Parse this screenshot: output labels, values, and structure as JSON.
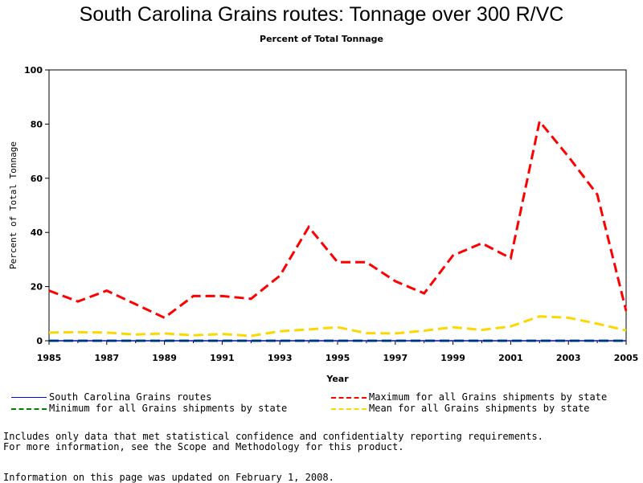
{
  "title": "South Carolina Grains routes: Tonnage over 300 R/VC",
  "subtitle": "Percent of Total Tonnage",
  "notes": {
    "line1": "Includes only data that met statistical confidence and confidentialty reporting requirements.",
    "line2": "For more information, see the Scope and Methodology for this product.",
    "updated": "Information on this page was updated on February 1, 2008."
  },
  "colors": {
    "south_carolina": "#0000ff",
    "maximum": "#ff0000",
    "minimum": "#008000",
    "mean": "#ffd700"
  },
  "chart_data": {
    "type": "line",
    "title": "South Carolina Grains routes: Tonnage over 300 R/VC",
    "subtitle": "Percent of Total Tonnage",
    "xlabel": "Year",
    "ylabel": "Percent of Total Tonnage",
    "xlim": [
      1985,
      2005
    ],
    "ylim": [
      0,
      100
    ],
    "x_ticks": [
      "1985",
      "1987",
      "1989",
      "1991",
      "1993",
      "1995",
      "1997",
      "1999",
      "2001",
      "2003",
      "2005"
    ],
    "y_ticks": [
      "0",
      "20",
      "40",
      "60",
      "80",
      "100"
    ],
    "grid": false,
    "legend_position": "bottom",
    "x": [
      1985,
      1986,
      1987,
      1988,
      1989,
      1990,
      1991,
      1992,
      1993,
      1994,
      1995,
      1996,
      1997,
      1998,
      1999,
      2000,
      2001,
      2002,
      2003,
      2004,
      2005
    ],
    "series": [
      {
        "name": "South Carolina Grains routes",
        "color": "#0000ff",
        "style": "solid",
        "values": [
          0,
          0,
          0,
          0,
          0,
          0,
          0,
          0,
          0,
          0,
          0,
          0,
          0,
          0,
          0,
          0,
          0,
          0,
          0,
          0,
          0
        ]
      },
      {
        "name": "Maximum for all Grains shipments by state",
        "color": "#ff0000",
        "style": "dashed",
        "values": [
          18.5,
          14.5,
          18.5,
          13.5,
          8.5,
          16.5,
          16.5,
          15.5,
          24,
          42,
          29,
          29,
          22,
          17.5,
          31.5,
          36,
          30.5,
          81,
          68,
          54,
          11
        ]
      },
      {
        "name": "Minimum for all Grains shipments by state",
        "color": "#008000",
        "style": "dashed",
        "values": [
          0,
          0,
          0,
          0,
          0,
          0,
          0,
          0,
          0,
          0,
          0,
          0,
          0,
          0,
          0,
          0,
          0,
          0,
          0,
          0,
          0
        ]
      },
      {
        "name": "Mean for all Grains shipments by state",
        "color": "#ffd700",
        "style": "dashed",
        "values": [
          3,
          3.2,
          3,
          2.3,
          2.7,
          2,
          2.5,
          1.8,
          3.5,
          4.2,
          5,
          2.8,
          2.7,
          3.7,
          5,
          4,
          5.3,
          9,
          8.5,
          6.3,
          3.8
        ]
      }
    ]
  }
}
